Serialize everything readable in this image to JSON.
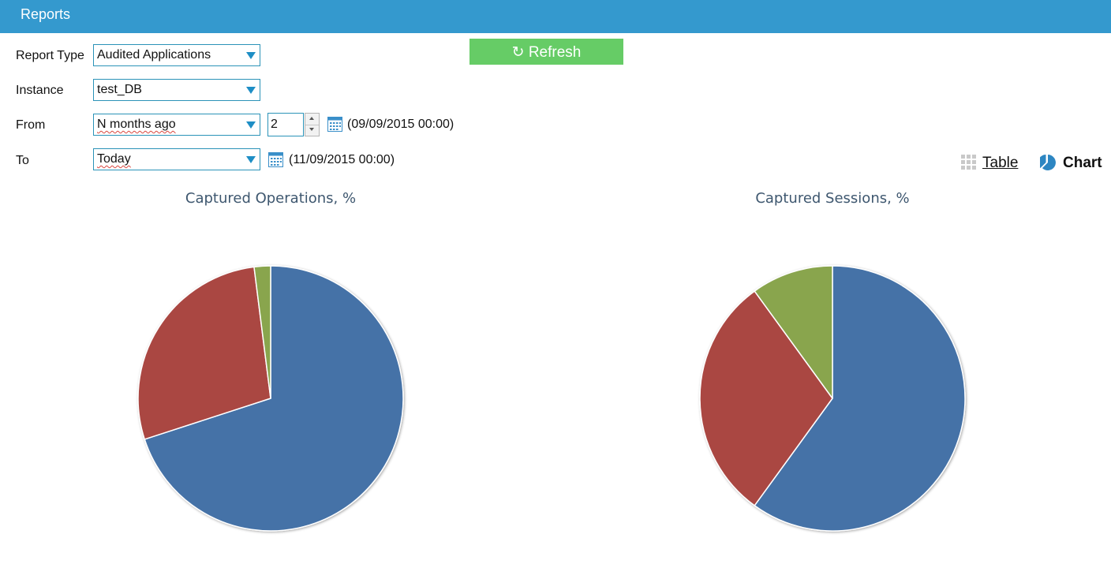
{
  "header": {
    "title": "Reports"
  },
  "form": {
    "report_type": {
      "label": "Report Type",
      "value": "Audited Applications"
    },
    "instance": {
      "label": "Instance",
      "value": "test_DB"
    },
    "from": {
      "label": "From",
      "value": "N months ago",
      "count": "2",
      "date": "(09/09/2015 00:00)"
    },
    "to": {
      "label": "To",
      "value": "Today",
      "date": "(11/09/2015 00:00)"
    }
  },
  "refresh": {
    "icon": "refresh-icon",
    "label": "↻ Refresh"
  },
  "view_toggle": {
    "table_label": "Table",
    "chart_label": "Chart",
    "selected": "Chart"
  },
  "colors": {
    "header": "#3499ce",
    "refresh": "#66cc66",
    "blue": "#4572a7",
    "red": "#aa4643",
    "green": "#89a54e"
  },
  "chart_data": [
    {
      "type": "pie",
      "title": "Captured Operations, %",
      "series": [
        {
          "color": "#4572a7",
          "value": 70.0
        },
        {
          "color": "#aa4643",
          "value": 28.0
        },
        {
          "color": "#89a54e",
          "value": 2.0
        }
      ]
    },
    {
      "type": "pie",
      "title": "Captured Sessions, %",
      "series": [
        {
          "color": "#4572a7",
          "value": 60.0
        },
        {
          "color": "#aa4643",
          "value": 30.0
        },
        {
          "color": "#89a54e",
          "value": 10.0
        }
      ]
    }
  ]
}
